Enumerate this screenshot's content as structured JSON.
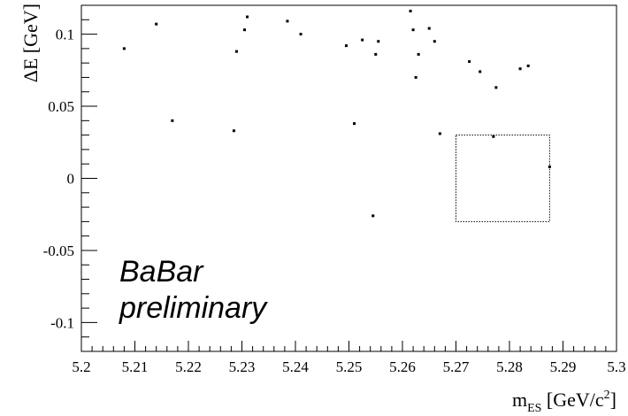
{
  "chart_data": {
    "type": "scatter",
    "title": "",
    "xlabel": {
      "main": "m",
      "sub": "ES",
      "unit_pre": " [GeV/c",
      "unit_sup": "2",
      "unit_post": "]"
    },
    "ylabel": "ΔE [GeV]",
    "xlim": [
      5.2,
      5.3
    ],
    "ylim": [
      -0.12,
      0.12
    ],
    "xticks": [
      5.2,
      5.21,
      5.22,
      5.23,
      5.24,
      5.25,
      5.26,
      5.27,
      5.28,
      5.29,
      5.3
    ],
    "xtick_labels": [
      "5.2",
      "5.21",
      "5.22",
      "5.23",
      "5.24",
      "5.25",
      "5.26",
      "5.27",
      "5.28",
      "5.29",
      "5.3"
    ],
    "yticks": [
      -0.1,
      -0.05,
      0,
      0.05,
      0.1
    ],
    "ytick_labels": [
      "-0.1",
      "-0.05",
      "0",
      "0.05",
      "0.1"
    ],
    "grid": false,
    "signal_box": {
      "x": [
        5.27,
        5.2875
      ],
      "y": [
        -0.03,
        0.03
      ]
    },
    "annotations": [
      "BaBar",
      "preliminary"
    ],
    "points": [
      {
        "x": 5.208,
        "y": 0.09
      },
      {
        "x": 5.214,
        "y": 0.107
      },
      {
        "x": 5.217,
        "y": 0.04
      },
      {
        "x": 5.2285,
        "y": 0.033
      },
      {
        "x": 5.229,
        "y": 0.088
      },
      {
        "x": 5.2305,
        "y": 0.103
      },
      {
        "x": 5.231,
        "y": 0.112
      },
      {
        "x": 5.2385,
        "y": 0.109
      },
      {
        "x": 5.241,
        "y": 0.1
      },
      {
        "x": 5.2495,
        "y": 0.092
      },
      {
        "x": 5.251,
        "y": 0.038
      },
      {
        "x": 5.2525,
        "y": 0.096
      },
      {
        "x": 5.2545,
        "y": -0.026
      },
      {
        "x": 5.255,
        "y": 0.086
      },
      {
        "x": 5.2555,
        "y": 0.095
      },
      {
        "x": 5.2615,
        "y": 0.116
      },
      {
        "x": 5.262,
        "y": 0.103
      },
      {
        "x": 5.2625,
        "y": 0.07
      },
      {
        "x": 5.263,
        "y": 0.086
      },
      {
        "x": 5.265,
        "y": 0.104
      },
      {
        "x": 5.266,
        "y": 0.095
      },
      {
        "x": 5.267,
        "y": 0.031
      },
      {
        "x": 5.2725,
        "y": 0.081
      },
      {
        "x": 5.2745,
        "y": 0.074
      },
      {
        "x": 5.277,
        "y": 0.029
      },
      {
        "x": 5.2775,
        "y": 0.063
      },
      {
        "x": 5.282,
        "y": 0.076
      },
      {
        "x": 5.2835,
        "y": 0.078
      },
      {
        "x": 5.2875,
        "y": 0.008
      }
    ]
  }
}
